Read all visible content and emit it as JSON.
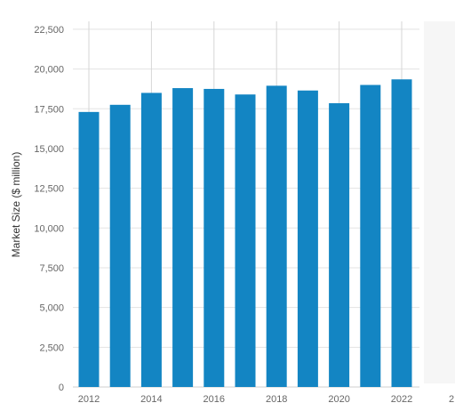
{
  "chart_data": {
    "type": "bar",
    "categories": [
      "2012",
      "2013",
      "2014",
      "2015",
      "2016",
      "2017",
      "2018",
      "2019",
      "2020",
      "2021",
      "2022"
    ],
    "values": [
      17300,
      17750,
      18500,
      18800,
      18750,
      18400,
      18950,
      18650,
      17850,
      19000,
      19350
    ],
    "x_tick_labels": [
      "2012",
      "2014",
      "2016",
      "2018",
      "2020",
      "2022",
      "2"
    ],
    "y_ticks": [
      0,
      2500,
      5000,
      7500,
      10000,
      12500,
      15000,
      17500,
      20000,
      22500
    ],
    "y_tick_labels": [
      "0",
      "2,500",
      "5,000",
      "7,500",
      "10,000",
      "12,500",
      "15,000",
      "17,500",
      "20,000",
      "22,500"
    ],
    "title": "",
    "xlabel": "",
    "ylabel": "Market Size ($ million)",
    "ylim": [
      0,
      23000
    ],
    "grid": true,
    "bar_color": "#1385c3",
    "grid_color": "#e3e3e3",
    "shaded_region_color": "#f6f6f6"
  }
}
